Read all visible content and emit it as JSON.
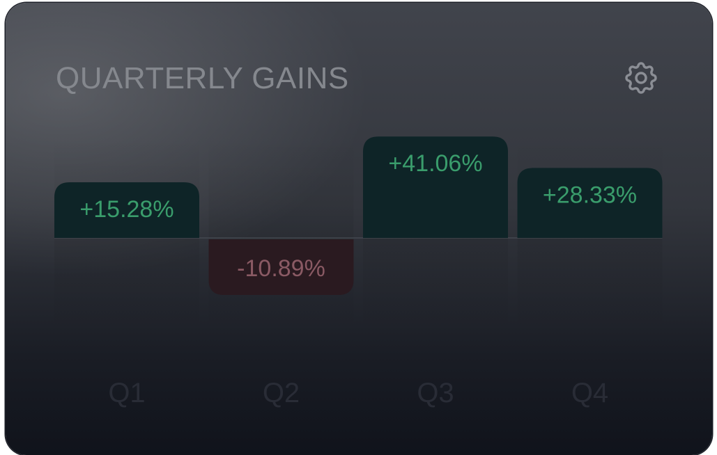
{
  "card": {
    "title": "QUARTERLY GAINS"
  },
  "icons": {
    "settings": "gear-icon"
  },
  "colors": {
    "positive_fill": "#0e2427",
    "positive_text": "#3a9d6c",
    "negative_fill": "#2a1a20",
    "negative_text": "#8a5a64",
    "title_text": "#85888e"
  },
  "chart_data": {
    "type": "bar",
    "title": "QUARTERLY GAINS",
    "categories": [
      "Q1",
      "Q2",
      "Q3",
      "Q4"
    ],
    "values": [
      15.28,
      -10.89,
      41.06,
      28.33
    ],
    "data_labels": [
      "+15.28%",
      "-10.89%",
      "+41.06%",
      "+28.33%"
    ],
    "unit": "%",
    "grid": false,
    "legend": "none"
  }
}
